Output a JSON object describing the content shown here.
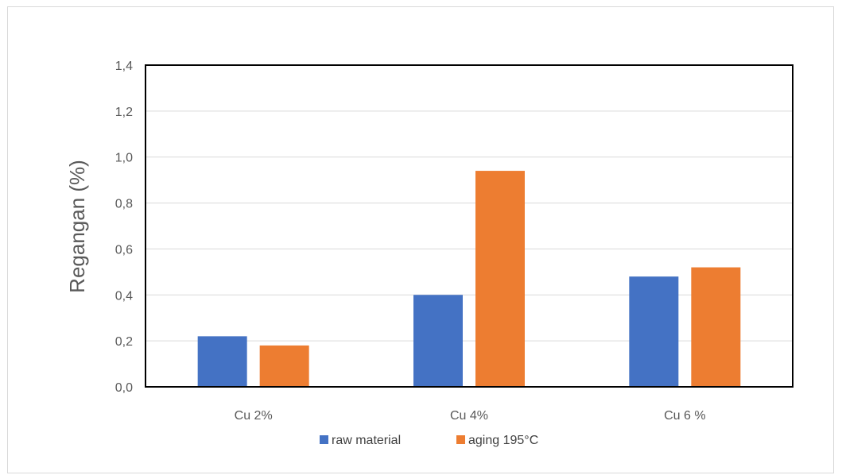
{
  "chart_data": {
    "type": "bar",
    "categories": [
      "Cu 2%",
      "Cu 4%",
      "Cu 6 %"
    ],
    "series": [
      {
        "name": "raw material",
        "values": [
          0.22,
          0.4,
          0.48
        ],
        "color": "#4472c4"
      },
      {
        "name": "aging 195°C",
        "values": [
          0.18,
          0.94,
          0.52
        ],
        "color": "#ed7d31"
      }
    ],
    "title": "",
    "xlabel": "",
    "ylabel": "Regangan (%)",
    "ylim": [
      0,
      1.4
    ],
    "yticks": [
      "0,0",
      "0,2",
      "0,4",
      "0,6",
      "0,8",
      "1,0",
      "1,2",
      "1,4"
    ],
    "grid": true,
    "legend_position": "bottom"
  }
}
